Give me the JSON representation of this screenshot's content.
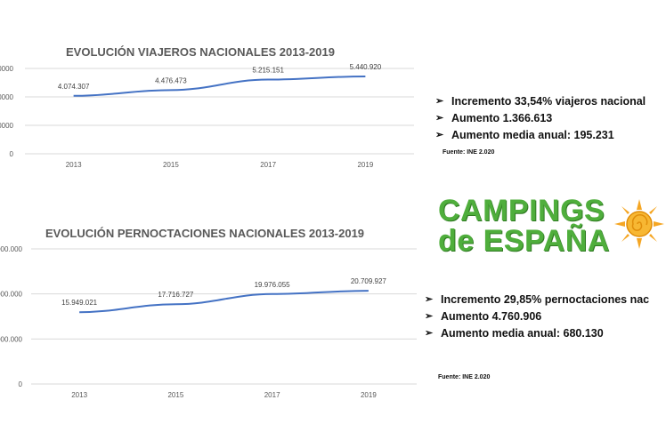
{
  "chart_data": [
    {
      "type": "line",
      "title": "EVOLUCIÓN VIAJEROS NACIONALES 2013-2019",
      "categories": [
        "2013",
        "2015",
        "2017",
        "2019"
      ],
      "series": [
        {
          "values": [
            4074307,
            4476473,
            5215151,
            5440920
          ]
        }
      ],
      "data_labels": [
        "4.074.307",
        "4.476.473",
        "5.215.151",
        "5.440.920"
      ],
      "ytick_labels": [
        "0",
        "0000",
        "0000",
        "0000"
      ],
      "ylim": [
        0,
        6000000
      ],
      "yticks": [
        0,
        2000000,
        4000000,
        6000000
      ],
      "grid": true,
      "line_color": "#4472c4"
    },
    {
      "type": "line",
      "title": "EVOLUCIÓN PERNOCTACIONES NACIONALES 2013-2019",
      "categories": [
        "2013",
        "2015",
        "2017",
        "2019"
      ],
      "series": [
        {
          "values": [
            15949021,
            17716727,
            19976055,
            20709927
          ]
        }
      ],
      "data_labels": [
        "15.949.021",
        "17.716.727",
        "19.976.055",
        "20.709.927"
      ],
      "ytick_labels": [
        "0",
        "000.000",
        "000.000",
        "000.000"
      ],
      "ylim": [
        0,
        30000000
      ],
      "yticks": [
        0,
        10000000,
        20000000,
        30000000
      ],
      "grid": true,
      "line_color": "#4472c4"
    }
  ],
  "stats_viajeros": [
    "Incremento 33,54% viajeros nacional",
    "Aumento 1.366.613",
    "Aumento media anual:  195.231"
  ],
  "source_viajeros": "Fuente: INE 2.020",
  "stats_pernoctaciones": [
    "Incremento 29,85% pernoctaciones nac",
    "Aumento 4.760.906",
    "Aumento media anual:  680.130"
  ],
  "source_pernoctaciones": "Fuente: INE 2.020",
  "logo": {
    "line1": "CAMPINGS",
    "line2": "de ESPAÑA",
    "text_color": "#4fae3c",
    "sun_color": "#f5a623",
    "icon": "sun-icon"
  },
  "bullet_glyph": "➢"
}
